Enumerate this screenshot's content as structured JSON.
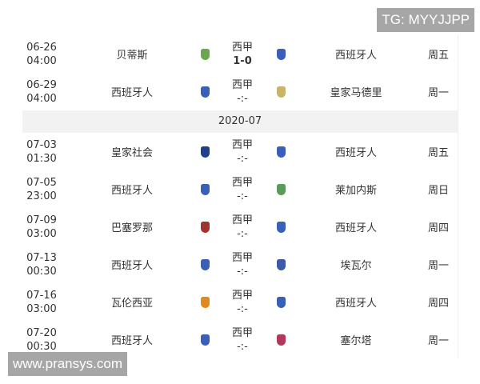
{
  "watermarks": {
    "top": "TG: MYYJJPP",
    "bottom": "www.pransys.com"
  },
  "month_header": "2020-07",
  "crest_colors": {
    "西班牙人": "#3a5fb8",
    "贝蒂斯": "#6aa84f",
    "皇家马德里": "#c8b46a",
    "皇家社会": "#1f3f8f",
    "莱加内斯": "#5a9a5a",
    "巴塞罗那": "#a0342c",
    "埃瓦尔": "#3c5aa8",
    "瓦伦西亚": "#e08a1e",
    "塞尔塔": "#b03a5a"
  },
  "matches_before": [
    {
      "date": "06-26",
      "time": "04:00",
      "home": "贝蒂斯",
      "league": "西甲",
      "score": "1-0",
      "away": "西班牙人",
      "weekday": "周五"
    },
    {
      "date": "06-29",
      "time": "04:00",
      "home": "西班牙人",
      "league": "西甲",
      "score": "-:-",
      "away": "皇家马德里",
      "weekday": "周一"
    }
  ],
  "matches_after": [
    {
      "date": "07-03",
      "time": "01:30",
      "home": "皇家社会",
      "league": "西甲",
      "score": "-:-",
      "away": "西班牙人",
      "weekday": "周五"
    },
    {
      "date": "07-05",
      "time": "23:00",
      "home": "西班牙人",
      "league": "西甲",
      "score": "-:-",
      "away": "莱加内斯",
      "weekday": "周日"
    },
    {
      "date": "07-09",
      "time": "03:00",
      "home": "巴塞罗那",
      "league": "西甲",
      "score": "-:-",
      "away": "西班牙人",
      "weekday": "周四"
    },
    {
      "date": "07-13",
      "time": "00:30",
      "home": "西班牙人",
      "league": "西甲",
      "score": "-:-",
      "away": "埃瓦尔",
      "weekday": "周一"
    },
    {
      "date": "07-16",
      "time": "03:00",
      "home": "瓦伦西亚",
      "league": "西甲",
      "score": "-:-",
      "away": "西班牙人",
      "weekday": "周四"
    },
    {
      "date": "07-20",
      "time": "00:30",
      "home": "西班牙人",
      "league": "西甲",
      "score": "-:-",
      "away": "塞尔塔",
      "weekday": "周一"
    }
  ]
}
